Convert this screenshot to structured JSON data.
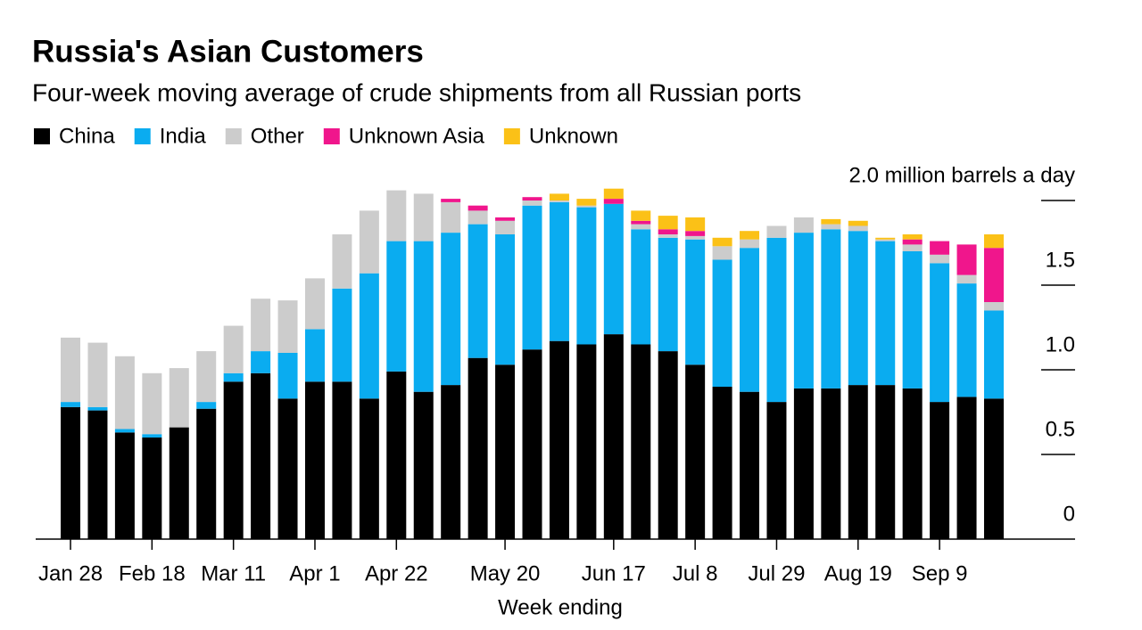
{
  "chart_data": {
    "type": "stacked_bar",
    "title": "Russia's Asian Customers",
    "subtitle": "Four-week moving average of crude shipments from all Russian ports",
    "x_label": "Week ending",
    "categories": [
      "Jan 28",
      null,
      null,
      "Feb 18",
      null,
      null,
      "Mar 11",
      null,
      null,
      "Apr 1",
      null,
      null,
      "Apr 22",
      null,
      null,
      null,
      "May 20",
      null,
      null,
      null,
      "Jun 17",
      null,
      null,
      "Jul 8",
      null,
      null,
      "Jul 29",
      null,
      null,
      "Aug 19",
      null,
      null,
      "Sep 9",
      null,
      null
    ],
    "series": [
      {
        "name": "China",
        "color": "#000000",
        "values": [
          0.78,
          0.76,
          0.63,
          0.6,
          0.66,
          0.77,
          0.93,
          0.98,
          0.83,
          0.93,
          0.93,
          0.83,
          0.99,
          0.87,
          0.91,
          1.07,
          1.03,
          1.12,
          1.17,
          1.15,
          1.21,
          1.15,
          1.11,
          1.03,
          0.9,
          0.87,
          0.81,
          0.89,
          0.89,
          0.91,
          0.91,
          0.89,
          0.81,
          0.84,
          0.83
        ]
      },
      {
        "name": "India",
        "color": "#0aacf0",
        "values": [
          0.03,
          0.02,
          0.02,
          0.02,
          0,
          0.04,
          0.05,
          0.13,
          0.27,
          0.31,
          0.55,
          0.74,
          0.77,
          0.89,
          0.9,
          0.79,
          0.77,
          0.85,
          0.82,
          0.81,
          0.77,
          0.68,
          0.67,
          0.74,
          0.75,
          0.85,
          0.97,
          0.92,
          0.94,
          0.91,
          0.85,
          0.81,
          0.82,
          0.67,
          0.52
        ]
      },
      {
        "name": "Other",
        "color": "#cccccc",
        "values": [
          0.38,
          0.38,
          0.43,
          0.36,
          0.35,
          0.3,
          0.28,
          0.31,
          0.31,
          0.3,
          0.32,
          0.37,
          0.3,
          0.28,
          0.18,
          0.08,
          0.08,
          0.03,
          0.01,
          0.01,
          0,
          0.03,
          0.02,
          0.02,
          0.08,
          0.05,
          0.07,
          0.09,
          0.03,
          0.03,
          0.01,
          0.04,
          0.05,
          0.05,
          0.05
        ]
      },
      {
        "name": "Unknown Asia",
        "color": "#f0168c",
        "values": [
          0,
          0,
          0,
          0,
          0,
          0,
          0,
          0,
          0,
          0,
          0,
          0,
          0,
          0,
          0.02,
          0.03,
          0.02,
          0.02,
          0,
          0,
          0.03,
          0.02,
          0.03,
          0.03,
          0,
          0,
          0,
          0,
          0,
          0,
          0,
          0.03,
          0.08,
          0.18,
          0.32
        ]
      },
      {
        "name": "Unknown",
        "color": "#fbc117",
        "values": [
          0,
          0,
          0,
          0,
          0,
          0,
          0,
          0,
          0,
          0,
          0,
          0,
          0,
          0,
          0,
          0,
          0,
          0,
          0.04,
          0.04,
          0.06,
          0.06,
          0.08,
          0.08,
          0.05,
          0.05,
          0,
          0,
          0.03,
          0.03,
          0.01,
          0.03,
          0,
          0,
          0.08
        ]
      }
    ],
    "ylim": [
      0,
      2.1
    ],
    "yticks": [
      0,
      0.5,
      {
        "value": 1,
        "label": "1.0"
      },
      1.5,
      {
        "value": 2,
        "label": "2.0 million barrels a day"
      }
    ]
  }
}
